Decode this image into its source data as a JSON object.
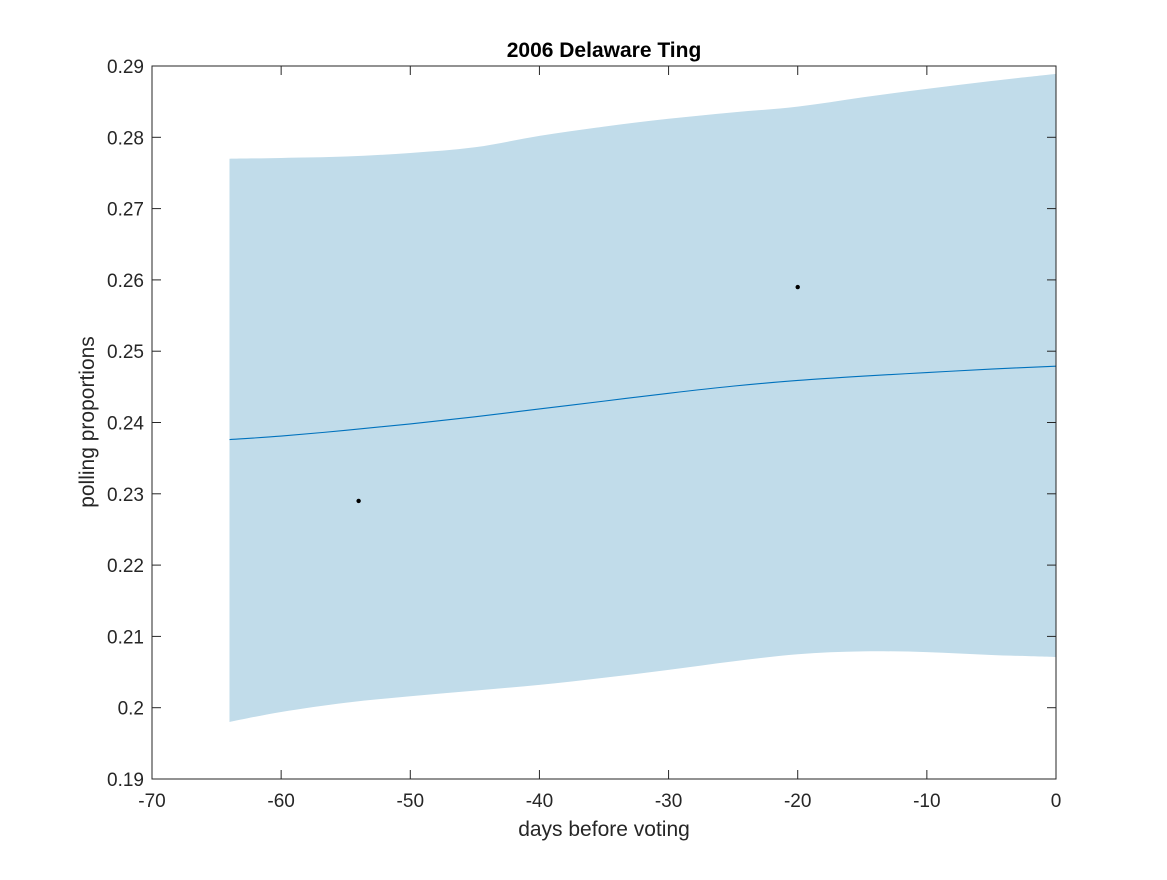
{
  "chart_data": {
    "type": "line",
    "title": "2006 Delaware Ting",
    "xlabel": "days before voting",
    "ylabel": "polling proportions",
    "xlim": [
      -70,
      0
    ],
    "ylim": [
      0.19,
      0.29
    ],
    "xticks": [
      -70,
      -60,
      -50,
      -40,
      -30,
      -20,
      -10,
      0
    ],
    "xtick_labels": [
      "-70",
      "-60",
      "-50",
      "-40",
      "-30",
      "-20",
      "-10",
      "0"
    ],
    "yticks": [
      0.19,
      0.2,
      0.21,
      0.22,
      0.23,
      0.24,
      0.25,
      0.26,
      0.27,
      0.28,
      0.29
    ],
    "ytick_labels": [
      "0.19",
      "0.2",
      "0.21",
      "0.22",
      "0.23",
      "0.24",
      "0.25",
      "0.26",
      "0.27",
      "0.28",
      "0.29"
    ],
    "grid": false,
    "series": [
      {
        "kind": "band",
        "color": "#c1dcea",
        "x": [
          -64,
          -60,
          -55,
          -50,
          -45,
          -40,
          -35,
          -30,
          -25,
          -20,
          -15,
          -10,
          -5,
          0
        ],
        "upper": [
          0.277,
          0.2771,
          0.2773,
          0.2778,
          0.2786,
          0.2802,
          0.2815,
          0.2826,
          0.2835,
          0.2843,
          0.2856,
          0.2868,
          0.2879,
          0.2889
        ],
        "lower": [
          0.198,
          0.1994,
          0.2007,
          0.2016,
          0.2024,
          0.2032,
          0.2042,
          0.2053,
          0.2065,
          0.2075,
          0.2079,
          0.2078,
          0.2074,
          0.2071
        ]
      },
      {
        "kind": "line",
        "color": "#0072bd",
        "x": [
          -64,
          -60,
          -55,
          -50,
          -45,
          -40,
          -35,
          -30,
          -25,
          -20,
          -15,
          -10,
          -5,
          0
        ],
        "y": [
          0.2376,
          0.2381,
          0.2389,
          0.2398,
          0.2408,
          0.2419,
          0.243,
          0.2441,
          0.2451,
          0.2459,
          0.2465,
          0.247,
          0.2475,
          0.2479
        ]
      },
      {
        "kind": "scatter",
        "color": "#000000",
        "x": [
          -54,
          -20
        ],
        "y": [
          0.229,
          0.259
        ]
      }
    ]
  }
}
